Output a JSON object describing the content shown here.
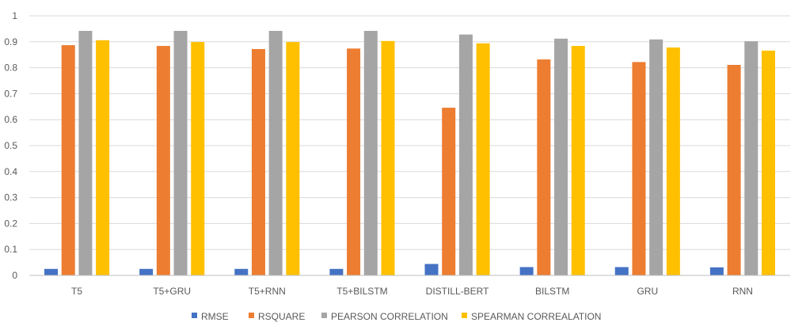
{
  "chart_data": {
    "type": "bar",
    "title": "",
    "xlabel": "",
    "ylabel": "",
    "ylim": [
      0,
      1
    ],
    "yticks": [
      0,
      0.1,
      0.2,
      0.3,
      0.4,
      0.5,
      0.6,
      0.7,
      0.8,
      0.9,
      1
    ],
    "ytick_labels": [
      "0",
      "0.1",
      "0.2",
      "0.3",
      "0.4",
      "0.5",
      "0.6",
      "0.7",
      "0.8",
      "0.9",
      "1"
    ],
    "grid": true,
    "legend_position": "bottom",
    "categories": [
      "T5",
      "T5+GRU",
      "T5+RNN",
      "T5+BILSTM",
      "DISTILL-BERT",
      "BILSTM",
      "GRU",
      "RNN"
    ],
    "series": [
      {
        "name": "RMSE",
        "color": "#4472C4",
        "values": [
          0.025,
          0.025,
          0.025,
          0.025,
          0.044,
          0.032,
          0.032,
          0.031
        ]
      },
      {
        "name": "RSQUARE",
        "color": "#ED7D31",
        "values": [
          0.887,
          0.884,
          0.872,
          0.874,
          0.646,
          0.832,
          0.822,
          0.811
        ]
      },
      {
        "name": "PEARSON CORRELATION",
        "color": "#A5A5A5",
        "values": [
          0.942,
          0.942,
          0.942,
          0.942,
          0.928,
          0.912,
          0.909,
          0.902
        ]
      },
      {
        "name": "SPEARMAN CORREALATION",
        "color": "#FFC000",
        "values": [
          0.906,
          0.899,
          0.899,
          0.903,
          0.894,
          0.884,
          0.878,
          0.866
        ]
      }
    ]
  }
}
